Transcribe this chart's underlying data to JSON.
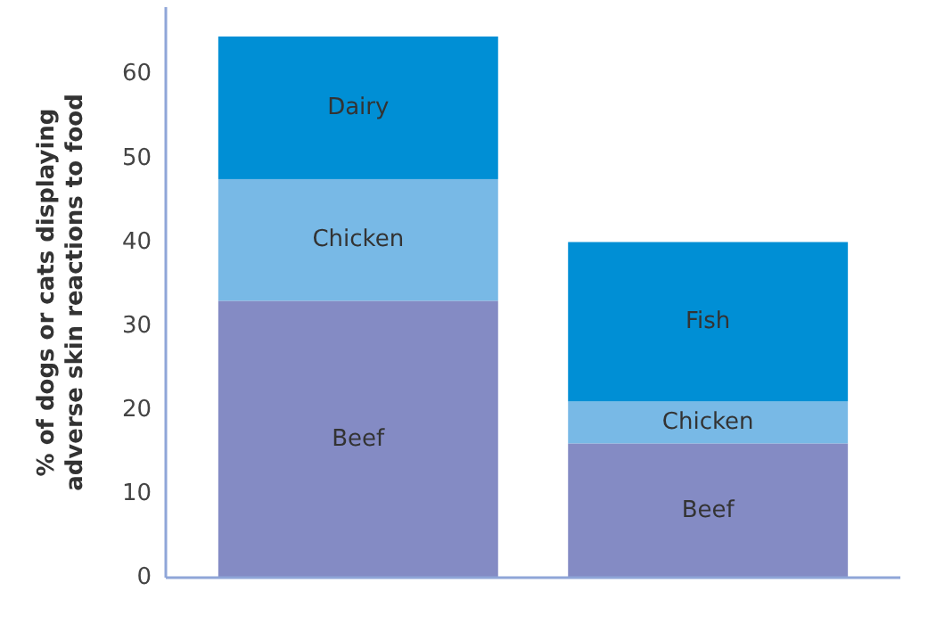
{
  "chart_data": {
    "type": "bar",
    "stacked": true,
    "ylabel": "% of dogs or cats displaying adverse skin reactions to food",
    "categories": [
      null,
      null
    ],
    "ylim": [
      0,
      68
    ],
    "yticks": [
      0,
      10,
      20,
      30,
      40,
      50,
      60
    ],
    "grid": false,
    "series": [
      {
        "name": "Beef",
        "color": "#848bc4",
        "values": [
          33,
          16
        ]
      },
      {
        "name": "Chicken",
        "color": "#78b9e6",
        "values": [
          14.5,
          5
        ]
      },
      {
        "name": "Dairy",
        "color": "#008fd5",
        "values": [
          17,
          null
        ]
      },
      {
        "name": "Fish",
        "color": "#008fd5",
        "values": [
          null,
          19
        ]
      }
    ]
  }
}
